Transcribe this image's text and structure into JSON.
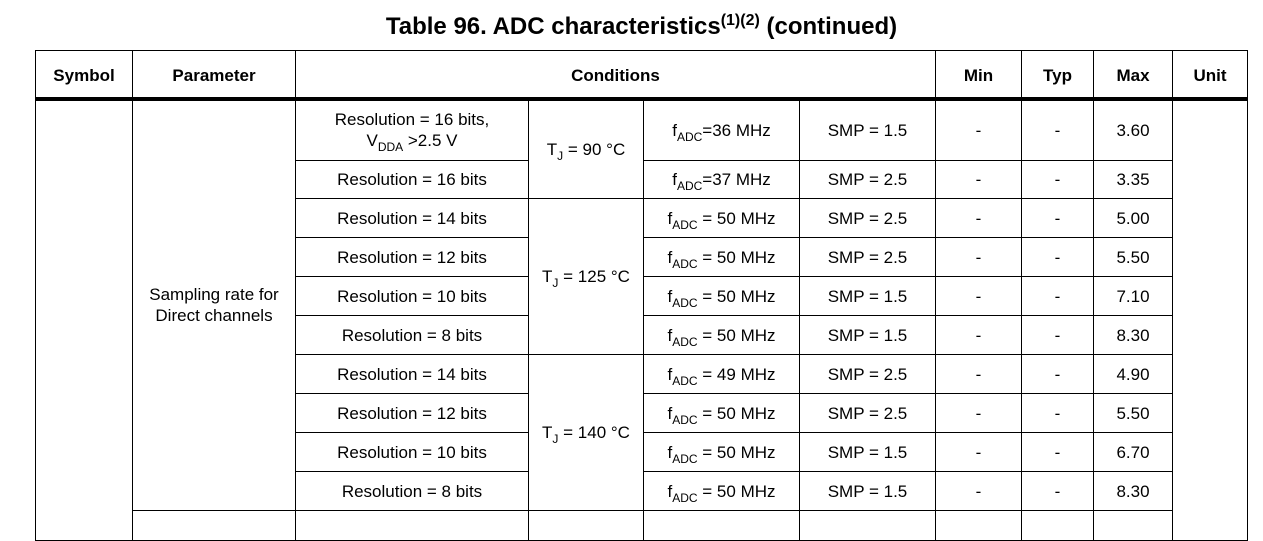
{
  "title": {
    "main": "Table 96. ADC characteristics",
    "sup": "(1)(2)",
    "rest": " (continued)"
  },
  "table": {
    "header": [
      "Symbol",
      "Parameter",
      "Conditions",
      "Min",
      "Typ",
      "Max",
      "Unit"
    ],
    "parameter": "Sampling rate for Direct channels",
    "groups": [
      {
        "tj": {
          "main": "T",
          "sub": "J",
          "rest": " = 90 °C"
        },
        "rows": [
          {
            "resolution": {
              "before": "Resolution = 16 bits,",
              "main": "V",
              "sub": "DDA",
              "rest": " >2.5 V"
            },
            "fadc": {
              "main": "f",
              "sub": "ADC",
              "rest": "=36 MHz"
            },
            "smp": "SMP = 1.5",
            "min": "-",
            "typ": "-",
            "max": "3.60"
          },
          {
            "resolution": "Resolution = 16 bits",
            "fadc": {
              "main": "f",
              "sub": "ADC",
              "rest": "=37 MHz"
            },
            "smp": "SMP = 2.5",
            "min": "-",
            "typ": "-",
            "max": "3.35"
          }
        ]
      },
      {
        "tj": {
          "main": "T",
          "sub": "J",
          "rest": " = 125 °C"
        },
        "rows": [
          {
            "resolution": "Resolution = 14 bits",
            "fadc": {
              "main": "f",
              "sub": "ADC",
              "rest": " = 50 MHz"
            },
            "smp": "SMP = 2.5",
            "min": "-",
            "typ": "-",
            "max": "5.00"
          },
          {
            "resolution": "Resolution = 12 bits",
            "fadc": {
              "main": "f",
              "sub": "ADC",
              "rest": " = 50 MHz"
            },
            "smp": "SMP = 2.5",
            "min": "-",
            "typ": "-",
            "max": "5.50"
          },
          {
            "resolution": "Resolution = 10 bits",
            "fadc": {
              "main": "f",
              "sub": "ADC",
              "rest": " = 50 MHz"
            },
            "smp": "SMP = 1.5",
            "min": "-",
            "typ": "-",
            "max": "7.10"
          },
          {
            "resolution": "Resolution = 8 bits",
            "fadc": {
              "main": "f",
              "sub": "ADC",
              "rest": " = 50 MHz"
            },
            "smp": "SMP = 1.5",
            "min": "-",
            "typ": "-",
            "max": "8.30"
          }
        ]
      },
      {
        "tj": {
          "main": "T",
          "sub": "J",
          "rest": " = 140 °C"
        },
        "rows": [
          {
            "resolution": "Resolution = 14 bits",
            "fadc": {
              "main": "f",
              "sub": "ADC",
              "rest": " = 49 MHz"
            },
            "smp": "SMP = 2.5",
            "min": "-",
            "typ": "-",
            "max": "4.90"
          },
          {
            "resolution": "Resolution = 12 bits",
            "fadc": {
              "main": "f",
              "sub": "ADC",
              "rest": " = 50 MHz"
            },
            "smp": "SMP = 2.5",
            "min": "-",
            "typ": "-",
            "max": "5.50"
          },
          {
            "resolution": "Resolution = 10 bits",
            "fadc": {
              "main": "f",
              "sub": "ADC",
              "rest": " = 50 MHz"
            },
            "smp": "SMP = 1.5",
            "min": "-",
            "typ": "-",
            "max": "6.70"
          },
          {
            "resolution": "Resolution = 8 bits",
            "fadc": {
              "main": "f",
              "sub": "ADC",
              "rest": " = 50 MHz"
            },
            "smp": "SMP = 1.5",
            "min": "-",
            "typ": "-",
            "max": "8.30"
          }
        ]
      }
    ]
  }
}
